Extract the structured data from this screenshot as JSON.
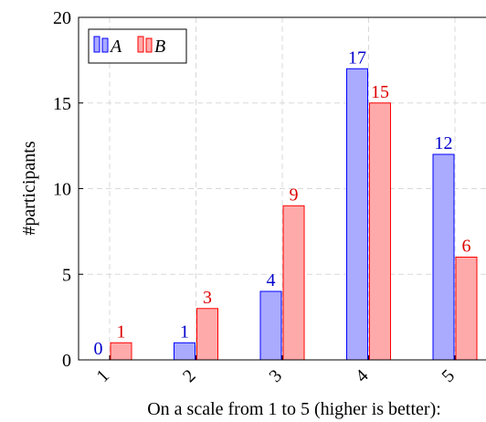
{
  "chart_data": {
    "type": "bar",
    "title": "",
    "xlabel": "On a scale from 1 to 5 (higher is better):",
    "ylabel": "#participants",
    "categories": [
      "1",
      "2",
      "3",
      "4",
      "5"
    ],
    "series": [
      {
        "name": "A",
        "values": [
          0,
          1,
          4,
          17,
          12
        ],
        "fill": "#aaaaff",
        "stroke": "#0000ff",
        "label_color": "#0000cc"
      },
      {
        "name": "B",
        "values": [
          1,
          3,
          9,
          15,
          6
        ],
        "fill": "#ffaaaa",
        "stroke": "#ff0000",
        "label_color": "#dd0000"
      }
    ],
    "ylim": [
      0,
      20
    ],
    "yticks": [
      "0",
      "5",
      "10",
      "15",
      "20"
    ],
    "grid": true,
    "legend_position": "top-left",
    "data_labels": true
  }
}
